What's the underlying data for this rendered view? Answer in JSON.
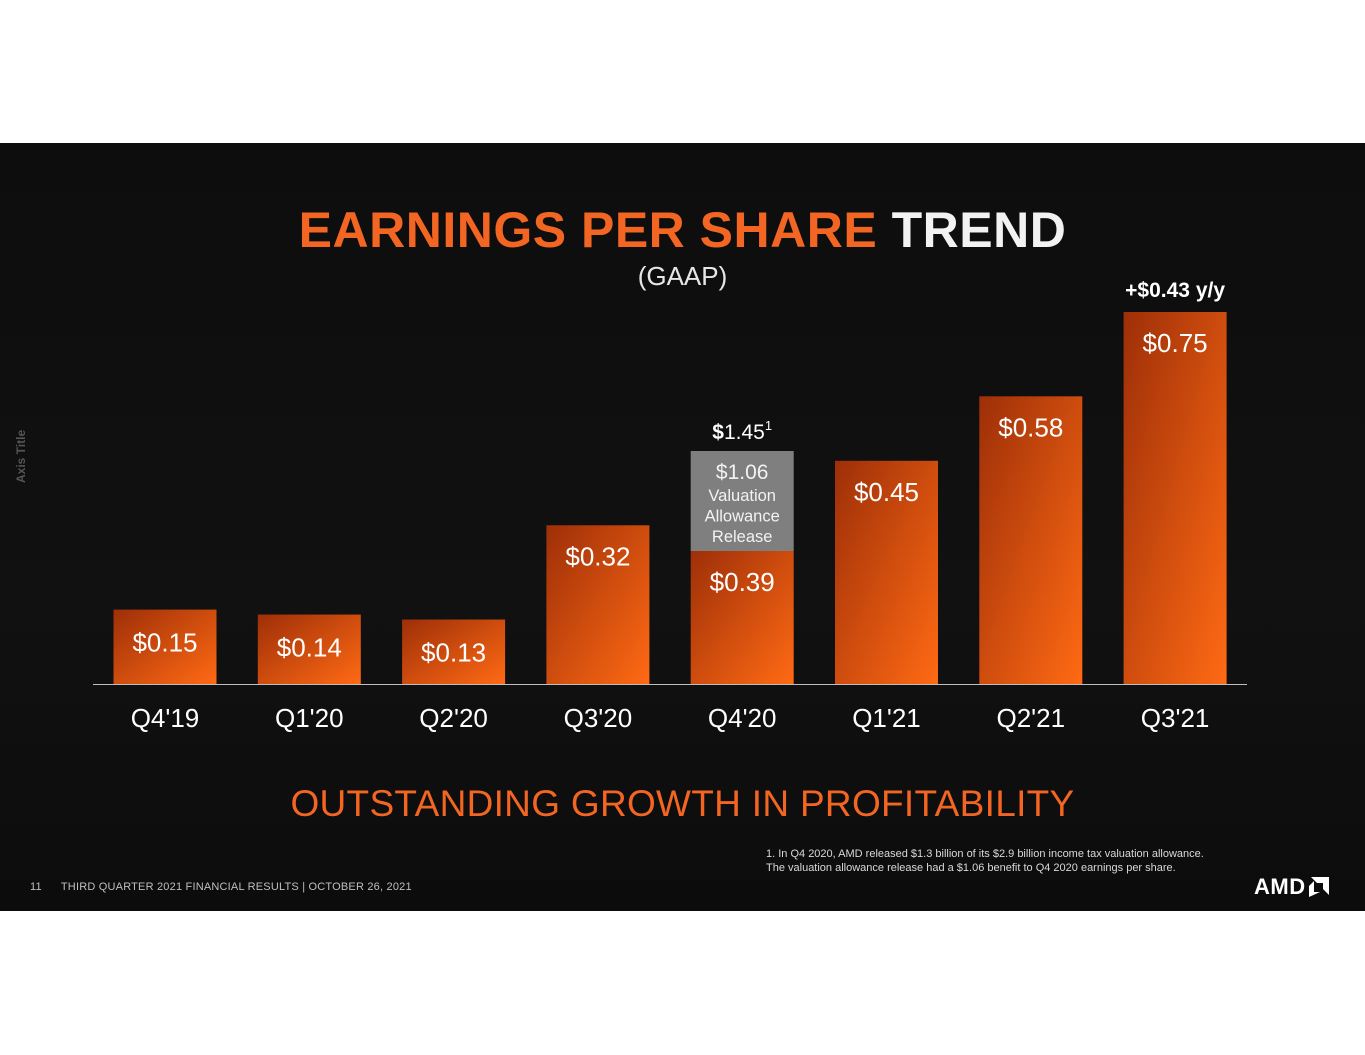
{
  "slide": {
    "title_accent": "EARNINGS PER SHARE",
    "title_plain": "TREND",
    "subtitle": "(GAAP)",
    "axis_title": "Axis Title",
    "tagline": "OUTSTANDING GROWTH IN PROFITABILITY",
    "footnote_line1": "1. In Q4 2020, AMD released $1.3 billion of its $2.9 billion income tax valuation allowance.",
    "footnote_line2": "The valuation allowance release had a $1.06 benefit to Q4 2020 earnings per share.",
    "page_number": "11",
    "footer_text": "THIRD QUARTER 2021 FINANCIAL RESULTS   |   OCTOBER 26, 2021",
    "logo_text": "AMD"
  },
  "chart_data": {
    "type": "bar",
    "title": "EARNINGS PER SHARE TREND",
    "subtitle": "(GAAP)",
    "categories": [
      "Q4'19",
      "Q1'20",
      "Q2'20",
      "Q3'20",
      "Q4'20",
      "Q1'21",
      "Q2'21",
      "Q3'21"
    ],
    "series": [
      {
        "name": "",
        "values": [
          0.15,
          0.14,
          0.13,
          0.32,
          0.39,
          0.45,
          0.58,
          0.75
        ],
        "labels": [
          "$0.15",
          "$0.14",
          "$0.13",
          "$0.32",
          "$0.39",
          "$0.45",
          "$0.58",
          "$0.75"
        ]
      }
    ],
    "stacked_segment": {
      "category": "Q4'20",
      "value": 1.06,
      "label_value": "$1.06",
      "label_lines": [
        "Valuation",
        "Allowance",
        "Release"
      ],
      "total_label": "$1.45",
      "total_footnote_mark": "1"
    },
    "annotation": {
      "category": "Q3'21",
      "text": "+$0.43 y/y"
    },
    "ylim": [
      0,
      0.75
    ],
    "grid": false,
    "legend": "none",
    "colors": {
      "bar_dark": "#9e2f08",
      "bar_light": "#ff6a14",
      "segment": "#7f7f7f",
      "axis": "#bfbfbf",
      "label": "#ffffff",
      "tick": "#ffffff"
    }
  }
}
